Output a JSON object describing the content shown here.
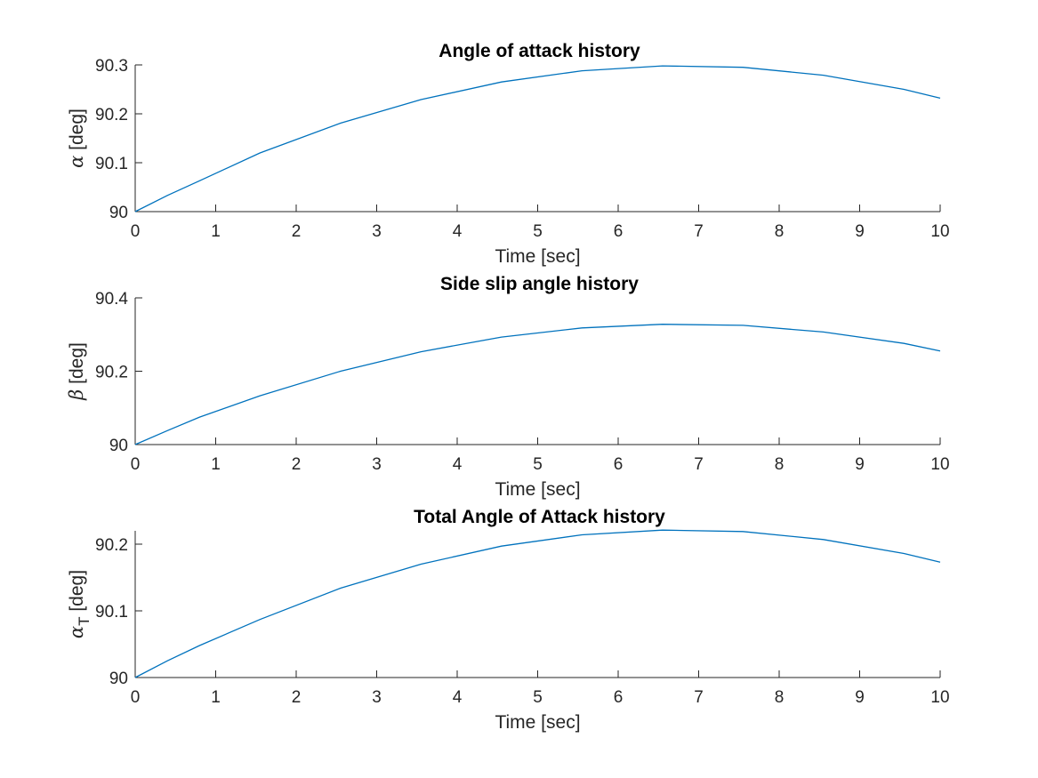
{
  "figure": {
    "background": "#ffffff",
    "line_color": "#0072BD",
    "axis_color": "#262626"
  },
  "chart_data": [
    {
      "type": "line",
      "title": "Angle of attack history",
      "xlabel": "Time [sec]",
      "ylabel_symbol": "α",
      "ylabel_subscript": "",
      "ylabel_text": " [deg]",
      "xlim": [
        0,
        10
      ],
      "ylim": [
        90,
        90.3
      ],
      "xticks": [
        0,
        1,
        2,
        3,
        4,
        5,
        6,
        7,
        8,
        9,
        10
      ],
      "yticks": [
        90,
        90.1,
        90.2,
        90.3
      ],
      "ytick_labels": [
        "90",
        "90.1",
        "90.2",
        "90.3"
      ],
      "grid": false,
      "x": [
        0,
        0.4,
        0.8,
        1.55,
        2.55,
        3.55,
        4.55,
        5.55,
        6.55,
        7.55,
        8.55,
        9.55,
        10
      ],
      "y": [
        90.0,
        90.033,
        90.063,
        90.12,
        90.181,
        90.229,
        90.265,
        90.288,
        90.298,
        90.295,
        90.279,
        90.25,
        90.232
      ]
    },
    {
      "type": "line",
      "title": "Side slip angle history",
      "xlabel": "Time [sec]",
      "ylabel_symbol": "β",
      "ylabel_subscript": "",
      "ylabel_text": " [deg]",
      "xlim": [
        0,
        10
      ],
      "ylim": [
        90,
        90.4
      ],
      "xticks": [
        0,
        1,
        2,
        3,
        4,
        5,
        6,
        7,
        8,
        9,
        10
      ],
      "yticks": [
        90,
        90.2,
        90.4
      ],
      "ytick_labels": [
        "90",
        "90.2",
        "90.4"
      ],
      "grid": false,
      "x": [
        0,
        0.4,
        0.8,
        1.55,
        2.55,
        3.55,
        4.55,
        5.55,
        6.55,
        7.55,
        8.55,
        9.55,
        10
      ],
      "y": [
        90.0,
        90.038,
        90.075,
        90.133,
        90.2,
        90.253,
        90.293,
        90.318,
        90.328,
        90.325,
        90.307,
        90.276,
        90.255
      ]
    },
    {
      "type": "line",
      "title": "Total Angle of Attack history",
      "xlabel": "Time [sec]",
      "ylabel_symbol": "α",
      "ylabel_subscript": "T",
      "ylabel_text": " [deg]",
      "xlim": [
        0,
        10
      ],
      "ylim": [
        90,
        90.22
      ],
      "xticks": [
        0,
        1,
        2,
        3,
        4,
        5,
        6,
        7,
        8,
        9,
        10
      ],
      "yticks": [
        90,
        90.1,
        90.2
      ],
      "ytick_labels": [
        "90",
        "90.1",
        "90.2"
      ],
      "grid": false,
      "x": [
        0,
        0.4,
        0.8,
        1.55,
        2.55,
        3.55,
        4.55,
        5.55,
        6.55,
        7.55,
        8.55,
        9.55,
        10
      ],
      "y": [
        90.0,
        90.025,
        90.048,
        90.087,
        90.134,
        90.17,
        90.197,
        90.214,
        90.221,
        90.219,
        90.207,
        90.186,
        90.173
      ]
    }
  ]
}
